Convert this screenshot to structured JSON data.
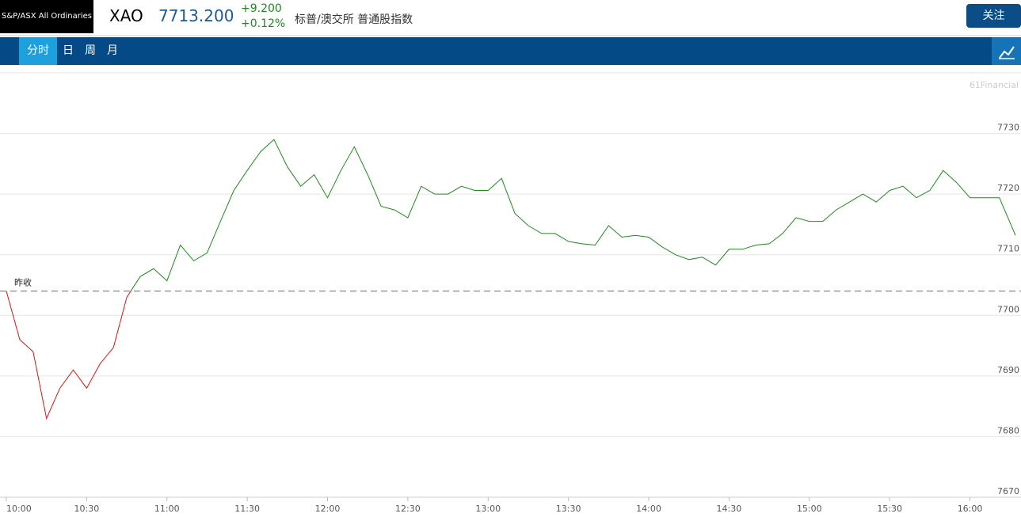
{
  "header": {
    "name": "S&P/ASX All Ordinaries",
    "code": "XAO",
    "price": "7713.200",
    "change": "+9.200",
    "change_pct": "+0.12%",
    "description": "标普/澳交所 普通股指数",
    "follow_button": "关注"
  },
  "tabs": [
    "分时",
    "日",
    "周",
    "月"
  ],
  "watermark": "61Financial",
  "chart_data": {
    "type": "line",
    "x": [
      "10:00",
      "10:05",
      "10:10",
      "10:15",
      "10:20",
      "10:25",
      "10:30",
      "10:35",
      "10:40",
      "10:45",
      "10:50",
      "10:55",
      "11:00",
      "11:05",
      "11:10",
      "11:15",
      "11:20",
      "11:25",
      "11:30",
      "11:35",
      "11:40",
      "11:45",
      "11:50",
      "11:55",
      "12:00",
      "12:05",
      "12:10",
      "12:15",
      "12:20",
      "12:25",
      "12:30",
      "12:35",
      "12:40",
      "12:45",
      "12:50",
      "12:55",
      "13:00",
      "13:05",
      "13:10",
      "13:15",
      "13:20",
      "13:25",
      "13:30",
      "13:35",
      "13:40",
      "13:45",
      "13:50",
      "13:55",
      "14:00",
      "14:05",
      "14:10",
      "14:15",
      "14:20",
      "14:25",
      "14:30",
      "14:35",
      "14:40",
      "14:45",
      "14:50",
      "14:55",
      "15:00",
      "15:05",
      "15:10",
      "15:15",
      "15:20",
      "15:25",
      "15:30",
      "15:35",
      "15:40",
      "15:45",
      "15:50",
      "15:55",
      "16:00",
      "16:05",
      "16:11",
      "16:17"
    ],
    "series": [
      {
        "name": "XAO",
        "values": [
          7704.0,
          7696,
          7694,
          7683,
          7688,
          7691,
          7688,
          7692,
          7694.7,
          7703,
          7706.4,
          7707.7,
          7705.7,
          7711.6,
          7709,
          7710.3,
          7715.5,
          7720.6,
          7723.9,
          7727,
          7729,
          7724.5,
          7721.3,
          7723.2,
          7719.4,
          7723.9,
          7727.8,
          7723.2,
          7718,
          7717.4,
          7716.1,
          7721.3,
          7720,
          7720,
          7721.3,
          7720.6,
          7720.6,
          7722.6,
          7716.8,
          7714.8,
          7713.5,
          7713.5,
          7712.2,
          7711.8,
          7711.6,
          7714.8,
          7712.9,
          7713.2,
          7712.9,
          7711.3,
          7710,
          7709.2,
          7709.6,
          7708.3,
          7710.9,
          7710.9,
          7711.6,
          7711.8,
          7713.5,
          7716.1,
          7715.5,
          7715.5,
          7717.4,
          7718.7,
          7720,
          7718.7,
          7720.6,
          7721.3,
          7719.4,
          7720.6,
          7723.9,
          7721.9,
          7719.4,
          7719.4,
          7719.4,
          7713.2
        ]
      }
    ],
    "up_color": "#1e8a1e",
    "down_color": "#d41414",
    "prev_close": {
      "label": "昨收",
      "value": 7704.0
    },
    "xlim": [
      "10:00",
      "16:17"
    ],
    "xticks": [
      "10:00",
      "10:30",
      "11:00",
      "11:30",
      "12:00",
      "12:30",
      "13:00",
      "13:30",
      "14:00",
      "14:30",
      "15:00",
      "15:30",
      "16:00"
    ],
    "ylim": [
      7670,
      7740
    ],
    "yticks": [
      7670,
      7680,
      7690,
      7700,
      7710,
      7720,
      7730
    ],
    "grid": true
  }
}
